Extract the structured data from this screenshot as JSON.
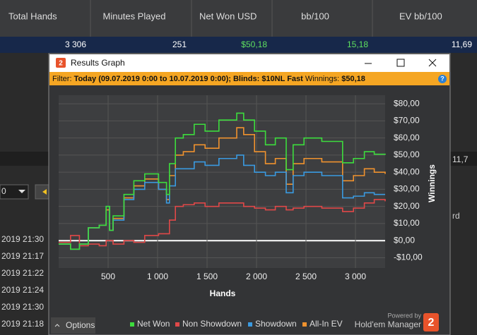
{
  "stats_table": {
    "headers": [
      "Total Hands",
      "Minutes Played",
      "Net Won USD",
      "bb/100",
      "EV bb/100"
    ],
    "row": [
      "3 306",
      "251",
      "$50,18",
      "15,18",
      "11,69"
    ]
  },
  "window": {
    "title": "Results Graph",
    "icon": "2",
    "help": "?",
    "filter_label": "Filter:",
    "filter": "Today (09.07.2019 0:00 to 10.07.2019 0:00); Blinds: $10NL Fast",
    "winnings_label": "Winnings:",
    "winnings": "$50,18"
  },
  "chart_data": {
    "type": "line",
    "xlabel": "Hands",
    "ylabel": "Winnings",
    "x": [
      0,
      120,
      210,
      300,
      410,
      480,
      515,
      550,
      660,
      760,
      870,
      1010,
      1090,
      1120,
      1180,
      1260,
      1370,
      1480,
      1620,
      1800,
      1870,
      1980,
      2090,
      2190,
      2300,
      2370,
      2480,
      2660,
      2870,
      2980,
      3090,
      3190,
      3300
    ],
    "series": [
      {
        "name": "Net Won",
        "color": "#3ddc3d",
        "values": [
          -2,
          -5,
          -2,
          7.5,
          9,
          20,
          6,
          14.5,
          27,
          35,
          39,
          34,
          27,
          45,
          60,
          62,
          68,
          64,
          70.5,
          74.5,
          70.5,
          64,
          56,
          60,
          41.5,
          56,
          60,
          58,
          45.5,
          48,
          52,
          50.5,
          50.18
        ]
      },
      {
        "name": "Non Showdown",
        "color": "#e04848",
        "values": [
          -1,
          3,
          -3,
          -2,
          -3,
          0,
          0,
          -2,
          0,
          -1,
          3,
          4,
          4,
          12,
          20,
          21,
          22,
          20,
          22,
          22,
          20,
          19,
          18,
          20,
          18,
          19,
          20,
          19,
          17,
          19,
          22,
          24,
          23
        ]
      },
      {
        "name": "Showdown",
        "color": "#3a9ae0",
        "values": [
          -2,
          -5,
          -2,
          7.5,
          9,
          20,
          6,
          12,
          24,
          30,
          34,
          30,
          22,
          32,
          42,
          42,
          46,
          44,
          48,
          50,
          44,
          40,
          38,
          40,
          28,
          38,
          40,
          38,
          25,
          26,
          28,
          27,
          27
        ]
      },
      {
        "name": "All-In EV",
        "color": "#f0922e",
        "values": [
          -2,
          -5,
          -2,
          7.5,
          9,
          18,
          6,
          13,
          25,
          32,
          36,
          30,
          24,
          38,
          50,
          52,
          56,
          54,
          60,
          66,
          62,
          52,
          45,
          48,
          33,
          45,
          48,
          46,
          35,
          38,
          42,
          40,
          39
        ]
      }
    ],
    "xlim": [
      0,
      3300
    ],
    "ylim": [
      -16,
      85
    ],
    "xticks": [
      500,
      {
        "value": 1000,
        "label": "1 000"
      },
      {
        "value": 1500,
        "label": "1 500"
      },
      {
        "value": 2000,
        "label": "2 000"
      },
      {
        "value": 2500,
        "label": "2 500"
      },
      {
        "value": 3000,
        "label": "3 000"
      }
    ],
    "yticks": [
      {
        "value": -10,
        "label": "-$10,00"
      },
      {
        "value": 0,
        "label": "$0,00"
      },
      {
        "value": 10,
        "label": "$10,00"
      },
      {
        "value": 20,
        "label": "$20,00"
      },
      {
        "value": 30,
        "label": "$30,00"
      },
      {
        "value": 40,
        "label": "$40,00"
      },
      {
        "value": 50,
        "label": "$50,00"
      },
      {
        "value": 60,
        "label": "$60,00"
      },
      {
        "value": 70,
        "label": "$70,00"
      },
      {
        "value": 80,
        "label": "$80,00"
      }
    ],
    "grid": true
  },
  "footer": {
    "options": "Options",
    "powered_by": "Powered by",
    "brand": "Hold'em Manager",
    "logo": "2"
  },
  "background": {
    "times": [
      "2019 21:30",
      "2019 21:17",
      "2019 21:22",
      "2019 21:24",
      "2019 21:30",
      "2019 21:18"
    ],
    "right_values": [
      "11,7",
      "rd"
    ],
    "dropdown_value": "0"
  }
}
